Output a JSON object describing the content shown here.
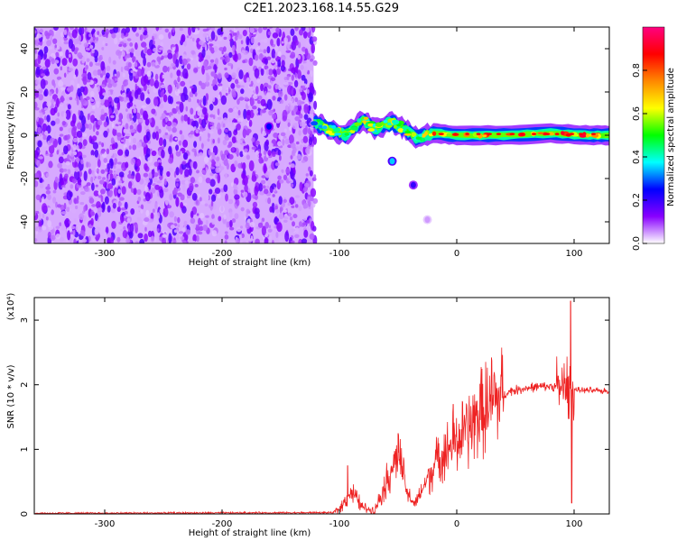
{
  "title": "C2E1.2023.168.14.55.G29",
  "chart_data": [
    {
      "type": "heatmap",
      "name": "spectrogram",
      "xlabel": "Height of straight line (km)",
      "ylabel": "Frequency (Hz)",
      "xlim": [
        -360,
        130
      ],
      "ylim": [
        -50,
        50
      ],
      "xticks": [
        -300,
        -200,
        -100,
        0,
        100
      ],
      "yticks": [
        -40,
        -20,
        0,
        20,
        40
      ],
      "colorbar": {
        "label": "Normalized spectral amplitude",
        "range": [
          0,
          1
        ],
        "ticks": [
          "0.0",
          "0.2",
          "0.4",
          "0.6",
          "0.8"
        ],
        "tick_values": [
          0,
          0.2,
          0.4,
          0.6,
          0.8
        ],
        "colors": [
          "#ffffff",
          "#8800ff",
          "#0000ff",
          "#00ffff",
          "#00ff00",
          "#ffff00",
          "#ff8800",
          "#ff0000",
          "#ff0080"
        ]
      },
      "noise_region": {
        "x": [
          -360,
          -122
        ],
        "y": [
          -50,
          50
        ],
        "amplitude": 0.12
      },
      "signal_track": [
        {
          "x": -122,
          "y": 6,
          "amplitude": 0.35
        },
        {
          "x": -110,
          "y": 3,
          "amplitude": 0.4
        },
        {
          "x": -95,
          "y": 0,
          "amplitude": 0.45
        },
        {
          "x": -80,
          "y": 7,
          "amplitude": 0.5
        },
        {
          "x": -70,
          "y": 3,
          "amplitude": 0.45
        },
        {
          "x": -55,
          "y": 6,
          "amplitude": 0.45
        },
        {
          "x": -45,
          "y": 3,
          "amplitude": 0.5
        },
        {
          "x": -35,
          "y": -1,
          "amplitude": 0.45
        },
        {
          "x": -20,
          "y": 1,
          "amplitude": 0.6
        },
        {
          "x": 0,
          "y": 0,
          "amplitude": 0.65
        },
        {
          "x": 40,
          "y": 0,
          "amplitude": 0.7
        },
        {
          "x": 80,
          "y": 1,
          "amplitude": 0.7
        },
        {
          "x": 110,
          "y": 0,
          "amplitude": 0.7
        },
        {
          "x": 130,
          "y": 0,
          "amplitude": 0.6
        }
      ],
      "blobs": [
        {
          "x": -160,
          "y": 4,
          "amplitude": 0.25
        },
        {
          "x": -55,
          "y": -12,
          "amplitude": 0.35
        },
        {
          "x": -37,
          "y": -23,
          "amplitude": 0.2
        },
        {
          "x": -25,
          "y": -39,
          "amplitude": 0.05
        }
      ]
    },
    {
      "type": "line",
      "name": "snr",
      "xlabel": "Height of straight line (km)",
      "ylabel": "SNR (10 * v/v)",
      "scale_label": "(x10⁴)",
      "xlim": [
        -360,
        130
      ],
      "ylim": [
        0,
        3.35
      ],
      "xticks": [
        -300,
        -200,
        -100,
        0,
        100
      ],
      "yticks": [
        0,
        1,
        2,
        3
      ],
      "color": "#ee2222",
      "envelope": [
        {
          "x": -360,
          "y": 0.01
        },
        {
          "x": -105,
          "y": 0.02
        },
        {
          "x": -100,
          "y": 0.08
        },
        {
          "x": -90,
          "y": 0.35
        },
        {
          "x": -80,
          "y": 0.1
        },
        {
          "x": -70,
          "y": 0.05
        },
        {
          "x": -60,
          "y": 0.5
        },
        {
          "x": -50,
          "y": 0.95
        },
        {
          "x": -42,
          "y": 0.3
        },
        {
          "x": -35,
          "y": 0.15
        },
        {
          "x": -25,
          "y": 0.55
        },
        {
          "x": -15,
          "y": 0.9
        },
        {
          "x": -5,
          "y": 1.05
        },
        {
          "x": 5,
          "y": 1.2
        },
        {
          "x": 15,
          "y": 1.45
        },
        {
          "x": 30,
          "y": 1.7
        },
        {
          "x": 45,
          "y": 1.9
        },
        {
          "x": 60,
          "y": 1.95
        },
        {
          "x": 80,
          "y": 1.98
        },
        {
          "x": 95,
          "y": 1.95
        },
        {
          "x": 100,
          "y": 1.92
        },
        {
          "x": 130,
          "y": 1.9
        }
      ],
      "spikes": [
        {
          "x": -93,
          "y": 0.75
        },
        {
          "x": -50,
          "y": 1.25
        },
        {
          "x": -3,
          "y": 1.7
        },
        {
          "x": 97,
          "y": 3.3
        },
        {
          "x": 98,
          "y": 0.17
        }
      ]
    }
  ]
}
